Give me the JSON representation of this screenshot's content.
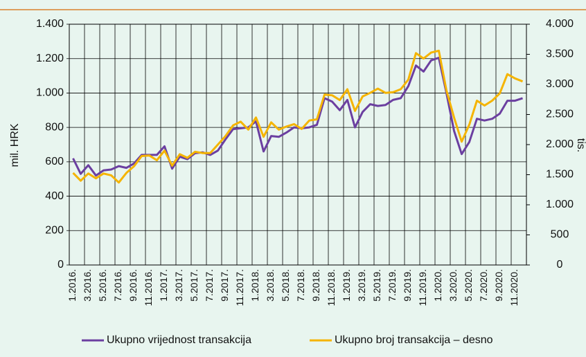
{
  "chart_data": {
    "type": "line",
    "y_label": "mil. HRK",
    "y2_label": "tis.",
    "categories": [
      "1.2016.",
      null,
      "3.2016.",
      null,
      "5.2016.",
      null,
      "7.2016.",
      null,
      "9.2016.",
      null,
      "11.2016.",
      null,
      "1.2017.",
      null,
      "3.2017.",
      null,
      "5.2017.",
      null,
      "7.2017.",
      null,
      "9.2017.",
      null,
      "11.2017.",
      null,
      "1.2018.",
      null,
      "3.2018.",
      null,
      "5.2018.",
      null,
      "7.2018.",
      null,
      "9.2018.",
      null,
      "11.2018.",
      null,
      "1.2019.",
      null,
      "3.2019.",
      null,
      "5.2019.",
      null,
      "7.2019.",
      null,
      "9.2019.",
      null,
      "11.2019.",
      null,
      "1.2020.",
      null,
      "3.2020.",
      null,
      "5.2020.",
      null,
      "7.2020.",
      null,
      "9.2020.",
      null,
      "11.2020.",
      null
    ],
    "series": [
      {
        "name": "Ukupno vrijednost transakcija",
        "color": "#6b3fa0",
        "axis": "y",
        "values": [
          620,
          530,
          580,
          520,
          550,
          555,
          575,
          565,
          590,
          640,
          640,
          640,
          690,
          560,
          630,
          615,
          650,
          655,
          640,
          665,
          730,
          790,
          795,
          800,
          835,
          660,
          750,
          745,
          770,
          800,
          795,
          800,
          815,
          970,
          950,
          900,
          960,
          800,
          890,
          935,
          925,
          930,
          960,
          970,
          1040,
          1160,
          1125,
          1190,
          1205,
          1000,
          780,
          645,
          715,
          850,
          840,
          850,
          880,
          955,
          955,
          970
        ]
      },
      {
        "name": "Ukupno broj transakcija – desno",
        "color": "#f5b400",
        "axis": "y2",
        "values": [
          1530,
          1400,
          1520,
          1440,
          1520,
          1490,
          1370,
          1530,
          1640,
          1810,
          1820,
          1740,
          1900,
          1650,
          1840,
          1780,
          1880,
          1860,
          1860,
          2000,
          2140,
          2320,
          2380,
          2250,
          2450,
          2130,
          2370,
          2250,
          2300,
          2340,
          2260,
          2400,
          2420,
          2830,
          2820,
          2740,
          2920,
          2560,
          2800,
          2860,
          2930,
          2860,
          2870,
          2920,
          3080,
          3520,
          3430,
          3530,
          3560,
          2900,
          2450,
          2050,
          2330,
          2730,
          2650,
          2730,
          2850,
          3170,
          3100,
          3050
        ]
      }
    ],
    "ylim": [
      0,
      1400
    ],
    "yticks": [
      0,
      200,
      400,
      600,
      800,
      {
        "value": 1000,
        "label": "1.000"
      },
      {
        "value": 1200,
        "label": "1.200"
      },
      {
        "value": 1400,
        "label": "1.400"
      }
    ],
    "y2lim": [
      0,
      4000
    ],
    "y2ticks": [
      0,
      500,
      {
        "value": 1000,
        "label": "1.000"
      },
      {
        "value": 1500,
        "label": "1.500"
      },
      {
        "value": 2000,
        "label": "2.000"
      },
      {
        "value": 2500,
        "label": "2.500"
      },
      {
        "value": 3000,
        "label": "3.000"
      },
      {
        "value": 3500,
        "label": "3.500"
      },
      {
        "value": 4000,
        "label": "4.000"
      }
    ],
    "grid": true,
    "legend": "bottom"
  }
}
